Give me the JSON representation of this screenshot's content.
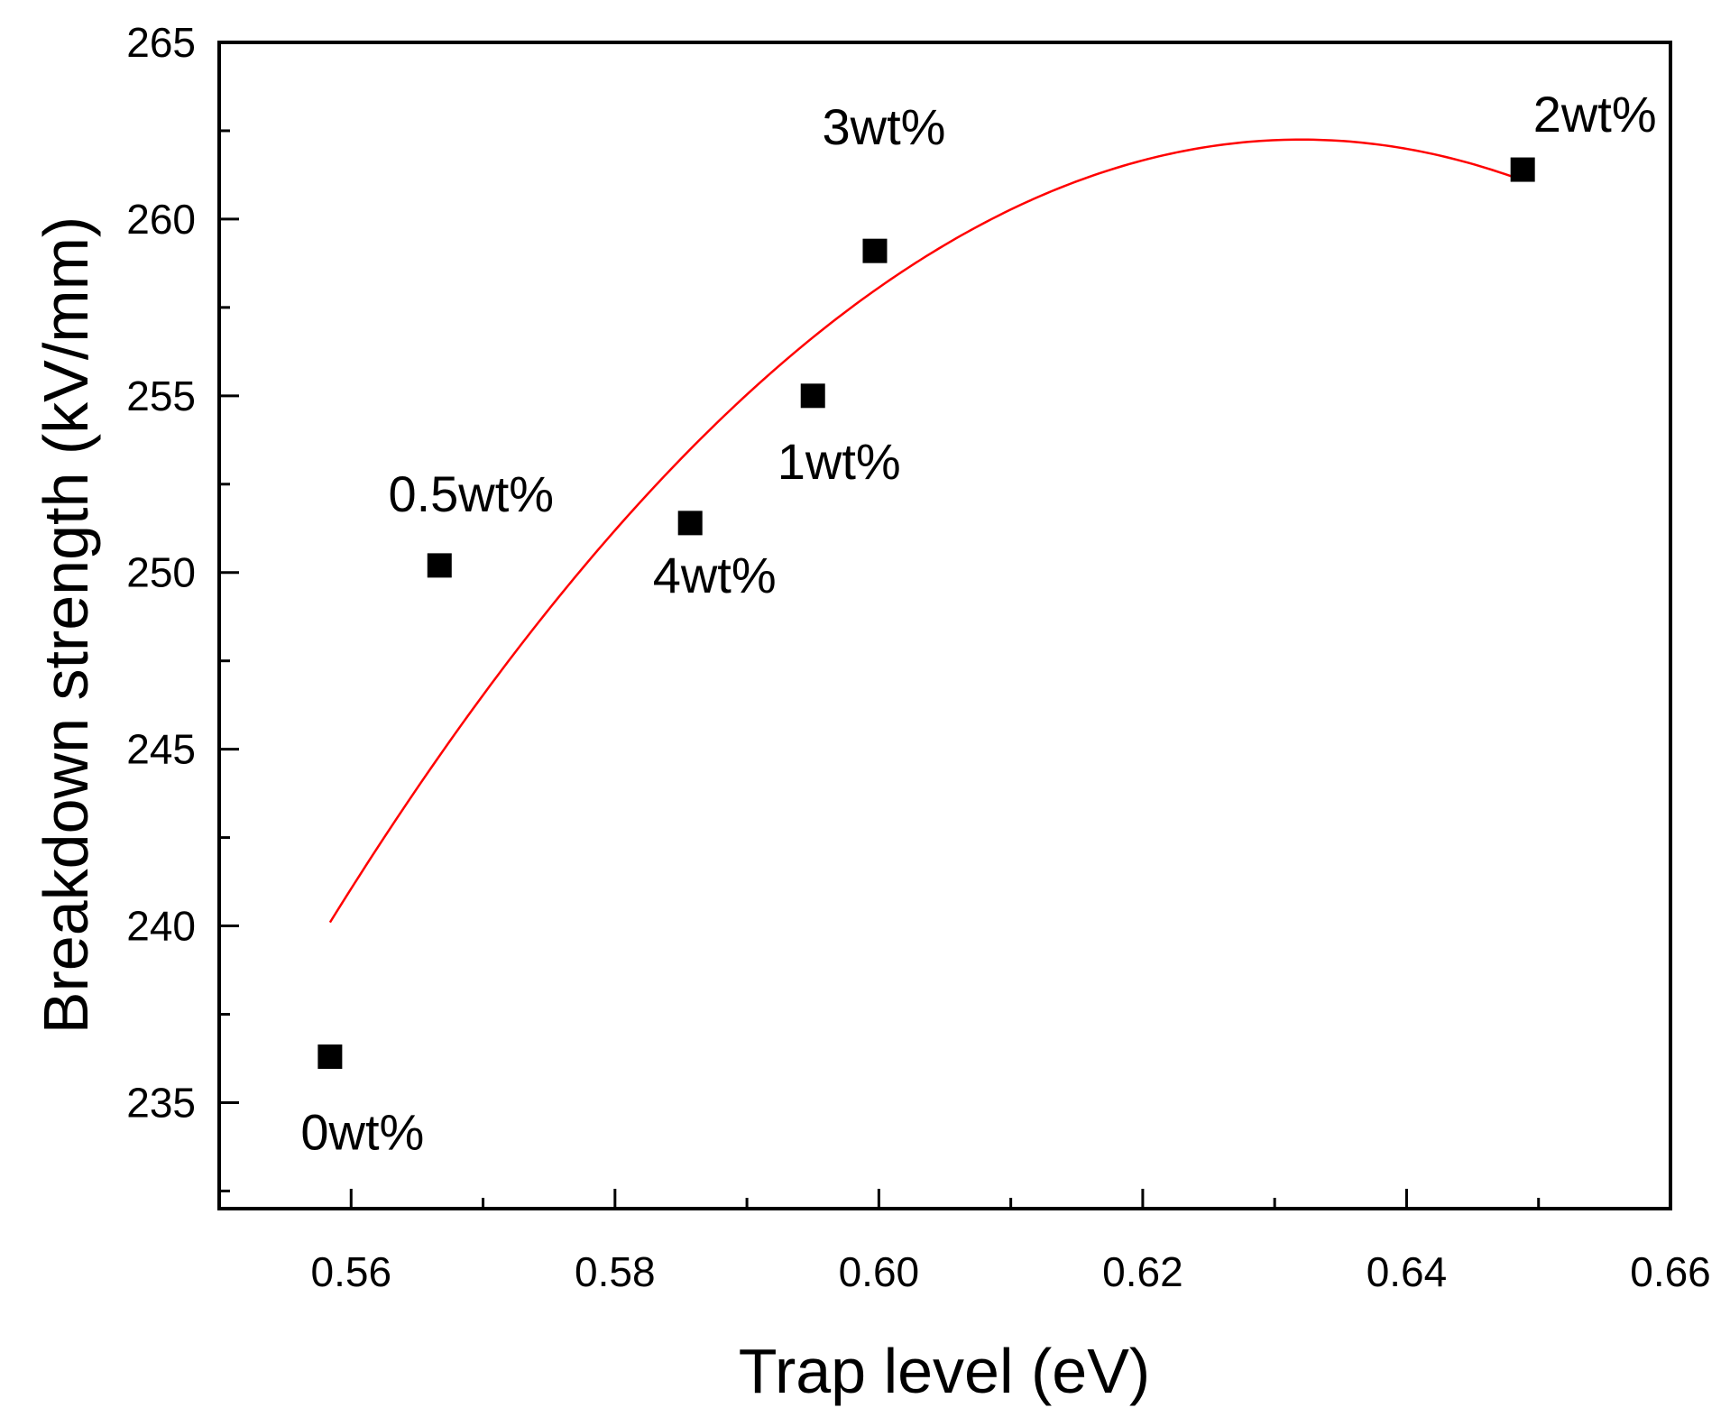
{
  "chart_data": {
    "type": "scatter",
    "title": "",
    "xlabel": "Trap level (eV)",
    "ylabel": "Breakdown strength (kV/mm)",
    "xlim": [
      0.55,
      0.66
    ],
    "ylim": [
      232,
      265
    ],
    "x_ticks": [
      0.56,
      0.58,
      0.6,
      0.62,
      0.64,
      0.66
    ],
    "x_tick_labels": [
      "0.56",
      "0.58",
      "0.60",
      "0.62",
      "0.64",
      "0.66"
    ],
    "y_ticks": [
      235,
      240,
      245,
      250,
      255,
      260,
      265
    ],
    "y_tick_labels": [
      "235",
      "240",
      "245",
      "250",
      "255",
      "260",
      "265"
    ],
    "x_minor_step": 0.01,
    "y_minor_step": 2.5,
    "grid": false,
    "series": [
      {
        "name": "data",
        "marker": "square",
        "color": "#000000",
        "points": [
          {
            "label": "0wt%",
            "x": 0.5584,
            "y": 236.3,
            "label_pos": "below"
          },
          {
            "label": "0.5wt%",
            "x": 0.5667,
            "y": 250.2,
            "label_pos": "above"
          },
          {
            "label": "4wt%",
            "x": 0.5857,
            "y": 251.4,
            "label_pos": "below"
          },
          {
            "label": "1wt%",
            "x": 0.595,
            "y": 255.0,
            "label_pos": "below"
          },
          {
            "label": "3wt%",
            "x": 0.5997,
            "y": 259.1,
            "label_pos": "above"
          },
          {
            "label": "2wt%",
            "x": 0.6488,
            "y": 261.4,
            "label_pos": "above"
          }
        ]
      },
      {
        "name": "fit",
        "type": "line",
        "color": "#ff0000",
        "x_range": [
          0.5584,
          0.6488
        ],
        "vertex": {
          "x": 0.632,
          "y": 262.25
        },
        "anchor": {
          "x": 0.5584,
          "y": 240.1
        }
      }
    ]
  }
}
